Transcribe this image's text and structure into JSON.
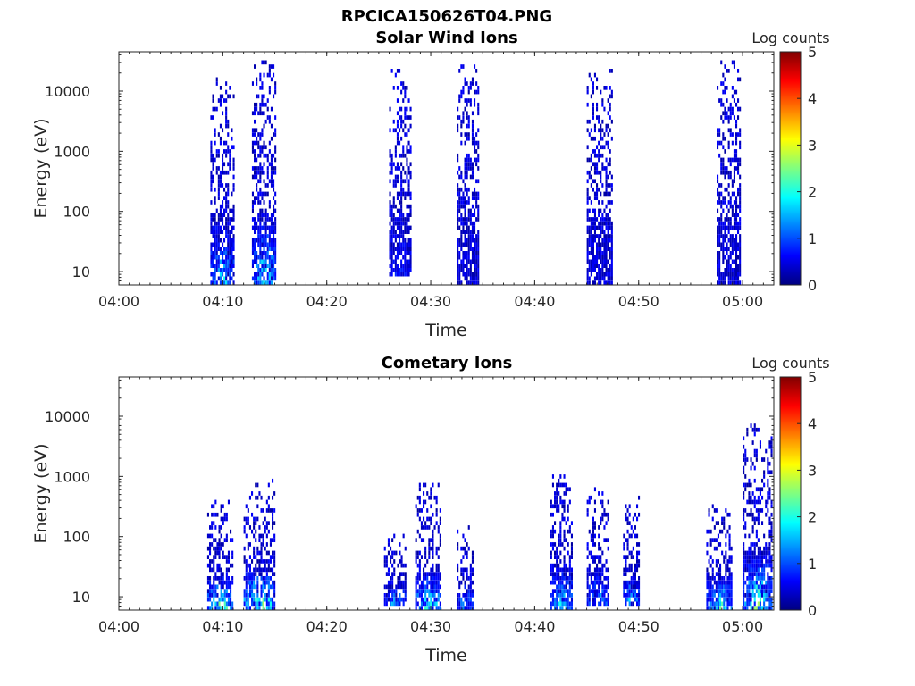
{
  "figure": {
    "title": "RPCICA150626T04.PNG"
  },
  "colors": {
    "background": "#ffffff",
    "axis": "#262626",
    "colormap": "jet"
  },
  "chart_data": [
    {
      "type": "heatmap",
      "title": "Solar Wind Ions",
      "xlabel": "Time",
      "ylabel": "Energy (eV)",
      "colorbar_label": "Log counts",
      "yscale": "log",
      "xlim": [
        "04:00",
        "05:03"
      ],
      "ylim": [
        6,
        45000
      ],
      "x_ticks": [
        "04:00",
        "04:10",
        "04:20",
        "04:30",
        "04:40",
        "04:50",
        "05:00"
      ],
      "y_ticks": [
        "10",
        "100",
        "1000",
        "10000"
      ],
      "colorbar_ticks": [
        "0",
        "1",
        "2",
        "3",
        "4",
        "5"
      ],
      "clim": [
        0,
        5
      ],
      "grid": false,
      "bursts": [
        {
          "start": "04:08.8",
          "end": "04:11.0",
          "max_energy_ev": 15000,
          "min_energy_ev": 6,
          "peak_log_counts": 2.1
        },
        {
          "start": "04:12.8",
          "end": "04:15.0",
          "max_energy_ev": 28000,
          "min_energy_ev": 6,
          "peak_log_counts": 2.5
        },
        {
          "start": "04:26.0",
          "end": "04:28.0",
          "max_energy_ev": 20000,
          "min_energy_ev": 9,
          "peak_log_counts": 0.9
        },
        {
          "start": "04:32.5",
          "end": "04:34.5",
          "max_energy_ev": 24000,
          "min_energy_ev": 6,
          "peak_log_counts": 0.6
        },
        {
          "start": "04:45.0",
          "end": "04:47.5",
          "max_energy_ev": 22000,
          "min_energy_ev": 6,
          "peak_log_counts": 0.6
        },
        {
          "start": "04:57.5",
          "end": "04:59.8",
          "max_energy_ev": 28000,
          "min_energy_ev": 6,
          "peak_log_counts": 0.6
        }
      ]
    },
    {
      "type": "heatmap",
      "title": "Cometary Ions",
      "xlabel": "Time",
      "ylabel": "Energy (eV)",
      "colorbar_label": "Log counts",
      "yscale": "log",
      "xlim": [
        "04:00",
        "05:03"
      ],
      "ylim": [
        6,
        45000
      ],
      "x_ticks": [
        "04:00",
        "04:10",
        "04:20",
        "04:30",
        "04:40",
        "04:50",
        "05:00"
      ],
      "y_ticks": [
        "10",
        "100",
        "1000",
        "10000"
      ],
      "colorbar_ticks": [
        "0",
        "1",
        "2",
        "3",
        "4",
        "5"
      ],
      "clim": [
        0,
        5
      ],
      "grid": false,
      "bursts": [
        {
          "start": "04:08.5",
          "end": "04:11.0",
          "max_energy_ev": 450,
          "min_energy_ev": 6,
          "peak_log_counts": 3.0
        },
        {
          "start": "04:12.0",
          "end": "04:15.0",
          "max_energy_ev": 800,
          "min_energy_ev": 6,
          "peak_log_counts": 3.9
        },
        {
          "start": "04:25.5",
          "end": "04:27.5",
          "max_energy_ev": 100,
          "min_energy_ev": 8,
          "peak_log_counts": 2.3
        },
        {
          "start": "04:28.5",
          "end": "04:31.0",
          "max_energy_ev": 700,
          "min_energy_ev": 6,
          "peak_log_counts": 2.7
        },
        {
          "start": "04:32.5",
          "end": "04:34.0",
          "max_energy_ev": 150,
          "min_energy_ev": 6,
          "peak_log_counts": 2.0
        },
        {
          "start": "04:41.5",
          "end": "04:43.5",
          "max_energy_ev": 1000,
          "min_energy_ev": 6,
          "peak_log_counts": 2.4
        },
        {
          "start": "04:45.0",
          "end": "04:47.0",
          "max_energy_ev": 600,
          "min_energy_ev": 8,
          "peak_log_counts": 2.2
        },
        {
          "start": "04:48.5",
          "end": "04:50.0",
          "max_energy_ev": 450,
          "min_energy_ev": 8,
          "peak_log_counts": 2.6
        },
        {
          "start": "04:56.5",
          "end": "04:59.0",
          "max_energy_ev": 300,
          "min_energy_ev": 6,
          "peak_log_counts": 2.8
        },
        {
          "start": "05:00.0",
          "end": "05:02.8",
          "max_energy_ev": 7000,
          "min_energy_ev": 6,
          "peak_log_counts": 3.0
        }
      ]
    }
  ]
}
